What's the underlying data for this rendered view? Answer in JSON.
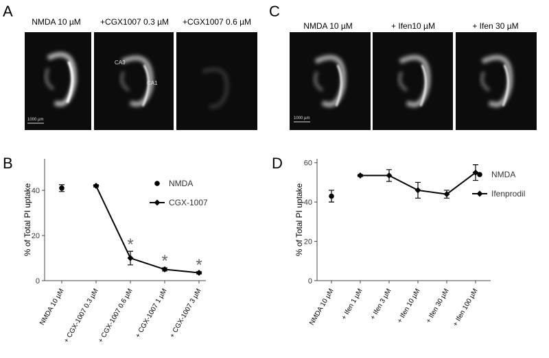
{
  "panel_labels": [
    "A",
    "B",
    "C",
    "D"
  ],
  "image_panels": [
    {
      "titles": [
        "NMDA 10 µM",
        "+CGX1007 0.3 µM",
        "+CGX1007 0.6 µM"
      ],
      "region_labels": [
        "CA3",
        "CA1"
      ],
      "scale_bar": "1000 µm"
    },
    {
      "titles": [
        "NMDA 10 µM",
        "+ Ifen10 µM",
        "+ Ifen 30 µM"
      ],
      "scale_bar": "1000 µm"
    }
  ],
  "chart_data": [
    {
      "type": "line",
      "y_label": "% of Total PI uptake",
      "categories": [
        "NMDA 10 µM",
        "+ CGX-1007  0.3 µM",
        "+ CGX-1007  0.6 µM",
        "+ CGX-1007  1 µM",
        "+ CGX-1007  3 µM"
      ],
      "series": [
        {
          "name": "NMDA",
          "color": "#000000",
          "marker": "circle",
          "line": false,
          "values": [
            41,
            null,
            null,
            null,
            null
          ],
          "errors": [
            1.5,
            null,
            null,
            null,
            null
          ]
        },
        {
          "name": "CGX-1007",
          "color": "#000000",
          "marker": "diamond",
          "line": true,
          "values": [
            null,
            42,
            10,
            5,
            3.5
          ],
          "errors": [
            null,
            0.5,
            3,
            0.7,
            0.5
          ]
        }
      ],
      "significance_labels": [
        null,
        null,
        "*",
        "*",
        "*"
      ],
      "ylim": [
        0,
        54
      ],
      "yticks": [
        0,
        20,
        40
      ]
    },
    {
      "type": "line",
      "y_label": "% of Total PI uptake",
      "categories": [
        "NMDA 10 µM",
        "+ Ifen 1 µM",
        "+ Ifen 3 µM",
        "+ Ifen 10 µM",
        "+ Ifen 30 µM",
        "+ Ifen 100 µM"
      ],
      "series": [
        {
          "name": "NMDA",
          "color": "#000000",
          "marker": "circle",
          "line": false,
          "values": [
            43,
            null,
            null,
            null,
            null,
            null
          ],
          "errors": [
            3,
            null,
            null,
            null,
            null,
            null
          ]
        },
        {
          "name": "Ifenprodil",
          "color": "#000000",
          "marker": "diamond",
          "line": true,
          "values": [
            null,
            53.5,
            53.5,
            46,
            44,
            55
          ],
          "errors": [
            null,
            0.5,
            3,
            4,
            2,
            4
          ]
        }
      ],
      "ylim": [
        0,
        62
      ],
      "yticks": [
        0,
        20,
        40,
        60
      ]
    }
  ]
}
